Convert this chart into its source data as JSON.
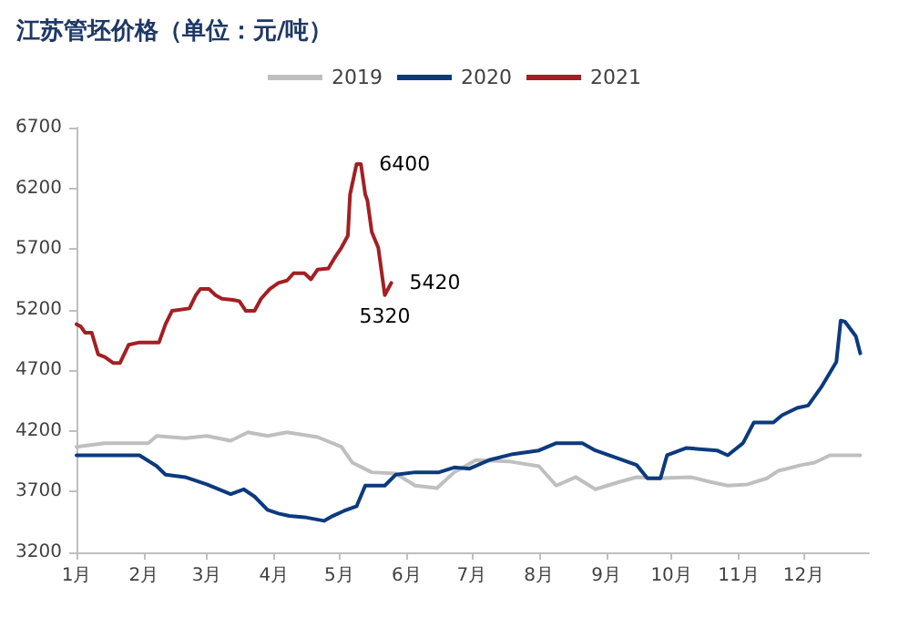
{
  "chart_data": {
    "type": "line",
    "title": "江苏管坯价格（单位：元/吨）",
    "xlim": [
      "--01-01",
      "--12-31"
    ],
    "xticks": [
      {
        "value": "--01-01",
        "label": "1月"
      },
      {
        "value": "--02-01",
        "label": "2月"
      },
      {
        "value": "--03-01",
        "label": "3月"
      },
      {
        "value": "--04-01",
        "label": "4月"
      },
      {
        "value": "--05-01",
        "label": "5月"
      },
      {
        "value": "--06-01",
        "label": "6月"
      },
      {
        "value": "--07-01",
        "label": "7月"
      },
      {
        "value": "--08-01",
        "label": "8月"
      },
      {
        "value": "--09-01",
        "label": "9月"
      },
      {
        "value": "--10-01",
        "label": "10月"
      },
      {
        "value": "--11-01",
        "label": "11月"
      },
      {
        "value": "--12-01",
        "label": "12月"
      }
    ],
    "ylim": [
      3200,
      6700
    ],
    "yticks": [
      3200,
      3700,
      4200,
      4700,
      5200,
      5700,
      6200,
      6700
    ],
    "grid": false,
    "legend": "top",
    "marker": "none",
    "line_style": "solid",
    "series": [
      {
        "name": "2019",
        "color": "#bfbfbf",
        "x": [
          "--01-01",
          "--01-14",
          "--02-03",
          "--02-07",
          "--02-20",
          "--03-01",
          "--03-12",
          "--03-20",
          "--03-29",
          "--04-07",
          "--04-21",
          "--05-02",
          "--05-07",
          "--05-16",
          "--05-27",
          "--06-05",
          "--06-15",
          "--06-23",
          "--07-03",
          "--07-18",
          "--08-01",
          "--08-09",
          "--08-18",
          "--08-27",
          "--09-07",
          "--09-15",
          "--09-24",
          "--10-10",
          "--10-19",
          "--10-27",
          "--11-05",
          "--11-14",
          "--11-19",
          "--11-30",
          "--12-06",
          "--12-13",
          "--12-27"
        ],
        "values": [
          4070,
          4100,
          4100,
          4160,
          4140,
          4160,
          4120,
          4190,
          4160,
          4190,
          4150,
          4070,
          3940,
          3860,
          3850,
          3750,
          3730,
          3860,
          3960,
          3950,
          3910,
          3750,
          3820,
          3720,
          3780,
          3820,
          3810,
          3820,
          3780,
          3750,
          3760,
          3810,
          3870,
          3920,
          3940,
          4000,
          4000
        ]
      },
      {
        "name": "2020",
        "color": "#0b3a7e",
        "x": [
          "--01-01",
          "--01-30",
          "--02-07",
          "--02-11",
          "--02-20",
          "--03-01",
          "--03-12",
          "--03-18",
          "--03-23",
          "--03-29",
          "--04-03",
          "--04-08",
          "--04-15",
          "--04-24",
          "--04-28",
          "--05-03",
          "--05-09",
          "--05-13",
          "--05-22",
          "--05-27",
          "--06-05",
          "--06-16",
          "--06-23",
          "--06-30",
          "--07-09",
          "--07-20",
          "--08-01",
          "--08-09",
          "--08-21",
          "--08-27",
          "--09-07",
          "--09-15",
          "--09-20",
          "--09-26",
          "--09-29",
          "--10-08",
          "--10-22",
          "--10-27",
          "--11-03",
          "--11-08",
          "--11-17",
          "--11-21",
          "--11-28",
          "--12-03",
          "--12-09",
          "--12-16",
          "--12-18",
          "--12-20",
          "--12-25",
          "--12-27"
        ],
        "values": [
          4000,
          4000,
          3910,
          3840,
          3820,
          3760,
          3680,
          3720,
          3660,
          3550,
          3520,
          3500,
          3490,
          3460,
          3500,
          3540,
          3580,
          3750,
          3750,
          3840,
          3860,
          3860,
          3900,
          3890,
          3960,
          4010,
          4040,
          4100,
          4100,
          4040,
          3970,
          3920,
          3810,
          3810,
          4000,
          4060,
          4040,
          4000,
          4100,
          4270,
          4270,
          4330,
          4390,
          4410,
          4560,
          4770,
          5110,
          5100,
          4980,
          4840
        ]
      },
      {
        "name": "2021",
        "color": "#a31f24",
        "x": [
          "--01-01",
          "--01-03",
          "--01-05",
          "--01-08",
          "--01-11",
          "--01-14",
          "--01-18",
          "--01-21",
          "--01-25",
          "--01-30",
          "--02-08",
          "--02-11",
          "--02-14",
          "--02-22",
          "--02-25",
          "--02-27",
          "--03-02",
          "--03-05",
          "--03-08",
          "--03-13",
          "--03-16",
          "--03-19",
          "--03-23",
          "--03-26",
          "--03-30",
          "--04-03",
          "--04-07",
          "--04-10",
          "--04-15",
          "--04-18",
          "--04-21",
          "--04-26",
          "--04-29",
          "--05-02",
          "--05-05",
          "--05-06",
          "--05-09",
          "--05-11",
          "--05-13",
          "--05-14",
          "--05-16",
          "--05-19",
          "--05-22",
          "--05-25"
        ],
        "values": [
          5080,
          5060,
          5010,
          5010,
          4830,
          4810,
          4760,
          4760,
          4910,
          4930,
          4930,
          5080,
          5190,
          5210,
          5320,
          5370,
          5370,
          5320,
          5290,
          5280,
          5270,
          5190,
          5190,
          5290,
          5370,
          5420,
          5440,
          5500,
          5500,
          5450,
          5530,
          5540,
          5630,
          5710,
          5810,
          6150,
          6400,
          6400,
          6150,
          6100,
          5840,
          5710,
          5320,
          5420
        ]
      }
    ],
    "annotations": [
      {
        "text": "6400",
        "x": "--05-11",
        "y": 6400
      },
      {
        "text": "5320",
        "x": "--05-22",
        "y": 5320
      },
      {
        "text": "5420",
        "x": "--05-25",
        "y": 5420
      }
    ]
  }
}
